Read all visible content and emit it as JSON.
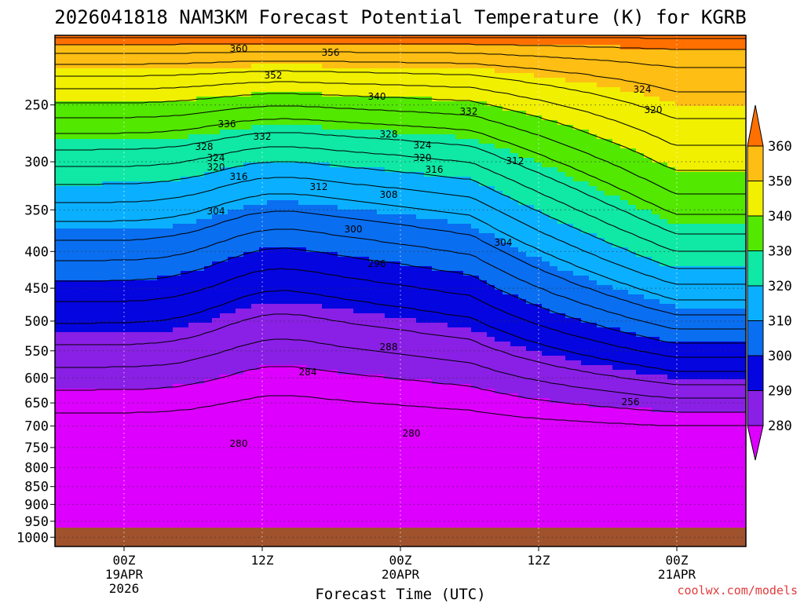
{
  "chart_data": {
    "type": "heatmap",
    "title": "2026041818 NAM3KM Forecast Potential Temperature (K) for KGRB",
    "xlabel": "Forecast Time (UTC)",
    "ylabel": "",
    "y_scale": "log",
    "y_inverted": true,
    "ylim": [
      1030,
      200
    ],
    "y_ticks": [
      "250",
      "300",
      "350",
      "400",
      "450",
      "500",
      "550",
      "600",
      "650",
      "700",
      "750",
      "800",
      "850",
      "900",
      "950",
      "1000"
    ],
    "x_ticks": [
      {
        "label": "00Z",
        "sub1": "19APR",
        "sub2": "2026"
      },
      {
        "label": "12Z",
        "sub1": "",
        "sub2": ""
      },
      {
        "label": "00Z",
        "sub1": "20APR",
        "sub2": ""
      },
      {
        "label": "12Z",
        "sub1": "",
        "sub2": ""
      },
      {
        "label": "00Z",
        "sub1": "21APR",
        "sub2": ""
      }
    ],
    "colorbar": {
      "levels": [
        "280",
        "290",
        "300",
        "310",
        "320",
        "330",
        "340",
        "350",
        "360"
      ],
      "colors": [
        "#dd00ff",
        "#8a1fe6",
        "#0505e0",
        "#0a6ef0",
        "#0ab0ff",
        "#10e8a5",
        "#52e800",
        "#f0f000",
        "#ffbe14",
        "#ff7000"
      ]
    },
    "ground_color": "#a0522d",
    "contour_labels": [
      "360",
      "356",
      "352",
      "340",
      "336",
      "332",
      "332",
      "328",
      "328",
      "324",
      "324",
      "320",
      "320",
      "316",
      "316",
      "312",
      "312",
      "308",
      "304",
      "304",
      "300",
      "296",
      "288",
      "284",
      "280",
      "280",
      "256",
      "324",
      "320"
    ],
    "grid": true
  },
  "credit": "coolwx.com/models"
}
